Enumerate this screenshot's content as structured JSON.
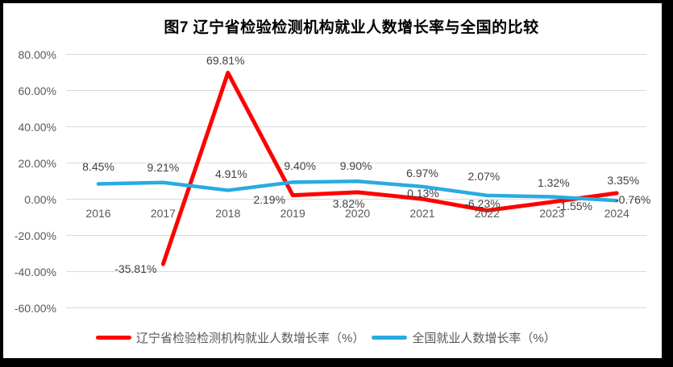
{
  "chart_data": {
    "type": "line",
    "title": "图7  辽宁省检验检测机构就业人数增长率与全国的比较",
    "categories": [
      "2016",
      "2017",
      "2018",
      "2019",
      "2020",
      "2021",
      "2022",
      "2023",
      "2024"
    ],
    "series": [
      {
        "name": "辽宁省检验检测机构就业人数增长率（%）",
        "color": "#FF0000",
        "values": [
          null,
          -35.81,
          69.81,
          2.19,
          3.82,
          0.13,
          -6.23,
          -1.55,
          3.35
        ],
        "labels": [
          "",
          "-35.81%",
          "69.81%",
          "2.19%",
          "3.82%",
          "0.13%",
          "-6.23%",
          "-1.55%",
          "3.35%"
        ]
      },
      {
        "name": "全国就业人数增长率（%）",
        "color": "#29ABE2",
        "values": [
          8.45,
          9.21,
          4.91,
          9.4,
          9.9,
          6.97,
          2.07,
          1.32,
          -0.76
        ],
        "labels": [
          "8.45%",
          "9.21%",
          "4.91%",
          "9.40%",
          "9.90%",
          "6.97%",
          "2.07%",
          "1.32%",
          "-0.76%"
        ]
      }
    ],
    "y_axis": {
      "min": -60,
      "max": 80,
      "ticks": [
        {
          "value": 80,
          "label": "80.00%"
        },
        {
          "value": 60,
          "label": "60.00%"
        },
        {
          "value": 40,
          "label": "40.00%"
        },
        {
          "value": 20,
          "label": "20.00%"
        },
        {
          "value": 0,
          "label": "0.00%"
        },
        {
          "value": -20,
          "label": "-20.00%"
        },
        {
          "value": -40,
          "label": "-40.00%"
        },
        {
          "value": -60,
          "label": "-60.00%"
        }
      ]
    },
    "grid": true,
    "legend_position": "bottom"
  },
  "colors": {
    "frame_border": "#000000",
    "paper": "#FFFFFF",
    "gridline": "#D9D9D9",
    "axis_text": "#595959",
    "data_label_text": "#404040",
    "title_text": "#000000",
    "series_liaoning": "#FF0000",
    "series_national": "#29ABE2"
  }
}
